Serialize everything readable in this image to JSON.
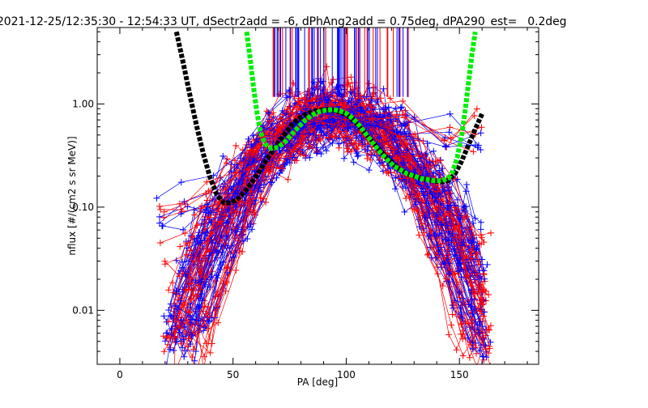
{
  "chart_data": {
    "type": "line",
    "title": "2021-12-25/12:35:30 - 12:54:33 UT, dSectr2add = -6, dPhAng2add = 0.75deg, dPA290_est=   0.2deg",
    "xlabel": "PA [deg]",
    "ylabel": "nflux [#/(cm2 s sr MeV)]",
    "xlim": [
      -10,
      185
    ],
    "ylim": [
      0.003,
      5.5
    ],
    "yscale": "log",
    "x_ticks": [
      0,
      50,
      100,
      150
    ],
    "x_tick_labels": [
      "0",
      "50",
      "100",
      "150"
    ],
    "y_ticks": [
      0.01,
      0.1,
      1.0
    ],
    "y_tick_labels": [
      "0.01",
      "0.10",
      "1.00"
    ],
    "grid": false,
    "colors": {
      "red": "#ff0000",
      "blue": "#0000ff",
      "black": "#000000",
      "green": "#00ee00"
    },
    "series": [
      {
        "color": "#000000",
        "style": "thick-dashed",
        "x": [
          25,
          28,
          31,
          34,
          37,
          40,
          43,
          46,
          49,
          52,
          55,
          58,
          61,
          64,
          67,
          70,
          73,
          76,
          79,
          82,
          85,
          88,
          91,
          94,
          97,
          100,
          103,
          106,
          109,
          112,
          115,
          118,
          121,
          124,
          127,
          130,
          133,
          136,
          139,
          142,
          145,
          148,
          151,
          154,
          157,
          160
        ],
        "y": [
          5.0,
          2.5,
          1.2,
          0.6,
          0.32,
          0.19,
          0.13,
          0.11,
          0.11,
          0.12,
          0.14,
          0.17,
          0.21,
          0.27,
          0.34,
          0.42,
          0.52,
          0.63,
          0.72,
          0.79,
          0.84,
          0.87,
          0.88,
          0.87,
          0.84,
          0.79,
          0.7,
          0.6,
          0.5,
          0.42,
          0.35,
          0.3,
          0.26,
          0.23,
          0.21,
          0.2,
          0.19,
          0.185,
          0.18,
          0.175,
          0.18,
          0.21,
          0.28,
          0.4,
          0.57,
          0.8
        ]
      },
      {
        "color": "#00ee00",
        "style": "thick-dashed",
        "x": [
          56,
          57.5,
          59,
          60.5,
          62,
          64,
          67,
          70,
          73,
          76,
          79,
          82,
          85,
          88,
          91,
          94,
          97,
          100,
          103,
          106,
          109,
          112,
          115,
          118,
          121,
          124,
          127,
          130,
          133,
          136,
          139,
          142,
          145,
          147,
          149,
          151,
          152.5,
          154,
          155.5,
          157
        ],
        "y": [
          5.0,
          2.8,
          1.5,
          0.85,
          0.55,
          0.41,
          0.37,
          0.38,
          0.43,
          0.51,
          0.6,
          0.7,
          0.78,
          0.84,
          0.87,
          0.88,
          0.86,
          0.81,
          0.72,
          0.61,
          0.5,
          0.41,
          0.34,
          0.29,
          0.25,
          0.23,
          0.21,
          0.2,
          0.19,
          0.185,
          0.18,
          0.18,
          0.19,
          0.22,
          0.3,
          0.5,
          0.85,
          1.6,
          3.0,
          5.0
        ]
      }
    ]
  }
}
